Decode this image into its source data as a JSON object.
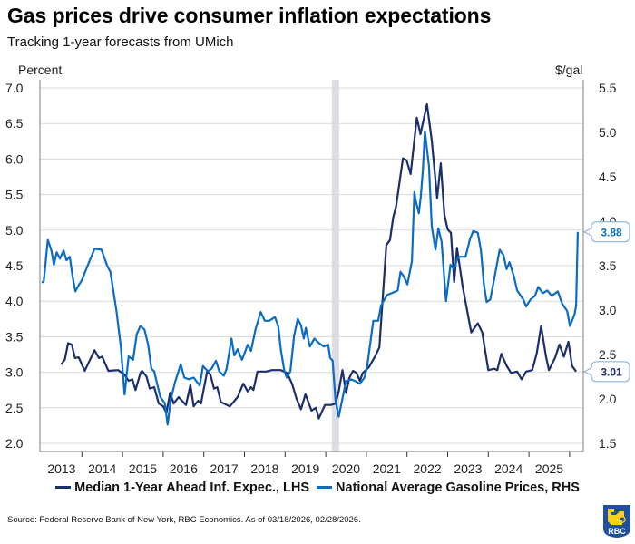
{
  "header": {
    "title": "Gas prices drive consumer inflation expectations",
    "subtitle": "Tracking 1-year forecasts from UMich"
  },
  "footer": {
    "source": "Source: Federal Reserve Bank of New York, RBC Economics. As of 03/18/2026, 02/28/2026.",
    "logo_text": "RBC",
    "logo_icon": "rbc-lion-shield-logo"
  },
  "colors": {
    "inflation_line": "#1a2f6b",
    "gas_line": "#0a6cc4",
    "recession_band": "#dcdde6",
    "grid": "#d9d9d9",
    "axis": "#7f7f7f"
  },
  "chart_data": {
    "type": "line",
    "title": "Gas prices drive consumer inflation expectations",
    "subtitle": "Tracking 1-year forecasts from UMich",
    "xlabel": "",
    "x_ticks": [
      "2013",
      "2014",
      "2015",
      "2016",
      "2017",
      "2018",
      "2019",
      "2020",
      "2021",
      "2022",
      "2023",
      "2024",
      "2025"
    ],
    "xlim": [
      2012.97,
      2026.3
    ],
    "grid": true,
    "legend_position": "bottom",
    "left_axis": {
      "label": "Percent",
      "ylim": [
        2.0,
        7.0
      ],
      "ticks": [
        "7.0",
        "6.5",
        "6.0",
        "5.5",
        "5.0",
        "4.5",
        "4.0",
        "3.5",
        "3.0",
        "2.5",
        "2.0"
      ]
    },
    "right_axis": {
      "label": "$/gal",
      "ylim": [
        1.5,
        5.5
      ],
      "ticks": [
        "5.5",
        "5.0",
        "4.5",
        "4.0",
        "3.5",
        "3.0",
        "2.5",
        "2.0",
        "1.5"
      ]
    },
    "shaded_regions": [
      {
        "label": "recession",
        "start": 2020.15,
        "end": 2020.33
      }
    ],
    "series": [
      {
        "name": "Median 1-Year Ahead Inf. Expec., LHS",
        "axis": "left",
        "color": "#1a2f6b",
        "last_value_label": "3.01",
        "x": [
          2013.49,
          2013.58,
          2013.66,
          2013.75,
          2013.83,
          2013.92,
          2014.07,
          2014.31,
          2014.42,
          2014.5,
          2014.65,
          2014.89,
          2015.04,
          2015.15,
          2015.24,
          2015.32,
          2015.44,
          2015.48,
          2015.59,
          2015.67,
          2015.78,
          2015.89,
          2016.0,
          2016.08,
          2016.17,
          2016.26,
          2016.38,
          2016.56,
          2016.67,
          2016.75,
          2016.86,
          2016.93,
          2017.08,
          2017.16,
          2017.25,
          2017.33,
          2017.42,
          2017.64,
          2017.83,
          2017.97,
          2018.08,
          2018.16,
          2018.22,
          2018.32,
          2018.53,
          2018.68,
          2018.9,
          2019.05,
          2019.17,
          2019.28,
          2019.39,
          2019.5,
          2019.65,
          2019.76,
          2019.83,
          2019.98,
          2020.13,
          2020.24,
          2020.32,
          2020.41,
          2020.5,
          2020.58,
          2020.67,
          2020.76,
          2020.84,
          2020.91,
          2021.06,
          2021.21,
          2021.32,
          2021.49,
          2021.58,
          2021.66,
          2021.73,
          2021.9,
          2021.99,
          2022.09,
          2022.24,
          2022.33,
          2022.49,
          2022.61,
          2022.74,
          2022.83,
          2022.92,
          2023.0,
          2023.08,
          2023.16,
          2023.23,
          2023.37,
          2023.58,
          2023.74,
          2023.85,
          2024.0,
          2024.15,
          2024.22,
          2024.32,
          2024.45,
          2024.56,
          2024.71,
          2024.82,
          2024.93,
          2025.08,
          2025.19,
          2025.3,
          2025.42,
          2025.49,
          2025.64,
          2025.75,
          2025.86,
          2025.97,
          2026.06,
          2026.16
        ],
        "values": [
          3.11,
          3.18,
          3.41,
          3.39,
          3.2,
          3.21,
          3.02,
          3.31,
          3.2,
          3.22,
          3.02,
          3.03,
          2.97,
          2.88,
          2.9,
          2.75,
          2.99,
          3.02,
          2.94,
          2.77,
          2.79,
          2.56,
          2.52,
          2.43,
          2.71,
          2.56,
          2.65,
          2.54,
          2.82,
          2.52,
          2.6,
          2.56,
          3.01,
          2.97,
          2.77,
          2.79,
          2.58,
          2.52,
          2.65,
          2.84,
          2.73,
          2.79,
          2.75,
          3.01,
          3.01,
          3.03,
          3.03,
          2.99,
          2.84,
          2.63,
          2.48,
          2.69,
          2.46,
          2.5,
          2.35,
          2.54,
          2.54,
          2.56,
          2.73,
          3.03,
          2.71,
          2.92,
          3.02,
          2.99,
          2.88,
          2.99,
          3.07,
          3.22,
          3.35,
          4.79,
          4.86,
          5.18,
          5.33,
          6.01,
          5.98,
          5.79,
          6.58,
          6.35,
          6.77,
          6.26,
          5.45,
          5.94,
          5.22,
          5.01,
          4.96,
          4.27,
          4.75,
          4.2,
          3.56,
          3.69,
          3.56,
          3.03,
          3.05,
          3.03,
          3.26,
          3.09,
          2.99,
          3.01,
          2.9,
          3.01,
          3.03,
          3.26,
          3.65,
          3.22,
          3.03,
          3.2,
          3.39,
          3.22,
          3.43,
          3.09,
          3.01
        ]
      },
      {
        "name": "National Average Gasoline Prices, RHS",
        "axis": "right",
        "color": "#0a6cc4",
        "last_value_label": "3.88",
        "x": [
          2013.01,
          2013.06,
          2013.16,
          2013.25,
          2013.31,
          2013.38,
          2013.46,
          2013.55,
          2013.62,
          2013.7,
          2013.77,
          2013.84,
          2013.92,
          2013.99,
          2014.14,
          2014.31,
          2014.48,
          2014.62,
          2014.7,
          2014.85,
          2014.96,
          2015.05,
          2015.15,
          2015.26,
          2015.35,
          2015.44,
          2015.54,
          2015.63,
          2015.71,
          2015.78,
          2015.85,
          2015.93,
          2016.04,
          2016.11,
          2016.19,
          2016.3,
          2016.43,
          2016.52,
          2016.63,
          2016.75,
          2016.9,
          2016.98,
          2017.1,
          2017.19,
          2017.3,
          2017.38,
          2017.49,
          2017.56,
          2017.68,
          2017.75,
          2017.83,
          2017.94,
          2018.08,
          2018.16,
          2018.27,
          2018.4,
          2018.5,
          2018.61,
          2018.75,
          2018.83,
          2018.9,
          2018.98,
          2019.04,
          2019.13,
          2019.22,
          2019.31,
          2019.39,
          2019.46,
          2019.51,
          2019.61,
          2019.72,
          2019.83,
          2019.95,
          2020.06,
          2020.11,
          2020.17,
          2020.24,
          2020.32,
          2020.43,
          2020.5,
          2020.62,
          2020.73,
          2020.84,
          2020.95,
          2021.02,
          2021.17,
          2021.29,
          2021.36,
          2021.51,
          2021.62,
          2021.77,
          2021.84,
          2021.92,
          2022.01,
          2022.12,
          2022.18,
          2022.21,
          2022.29,
          2022.34,
          2022.39,
          2022.44,
          2022.54,
          2022.61,
          2022.7,
          2022.77,
          2022.85,
          2022.96,
          2023.07,
          2023.15,
          2023.26,
          2023.44,
          2023.55,
          2023.63,
          2023.74,
          2023.82,
          2023.89,
          2023.96,
          2024.05,
          2024.15,
          2024.28,
          2024.37,
          2024.45,
          2024.52,
          2024.63,
          2024.71,
          2024.86,
          2024.93,
          2025.04,
          2025.15,
          2025.23,
          2025.34,
          2025.45,
          2025.56,
          2025.71,
          2025.82,
          2025.94,
          2026.01,
          2026.12,
          2026.16,
          2026.2
        ],
        "values": [
          3.31,
          3.32,
          3.79,
          3.67,
          3.51,
          3.65,
          3.58,
          3.67,
          3.56,
          3.6,
          3.38,
          3.21,
          3.28,
          3.33,
          3.5,
          3.69,
          3.68,
          3.5,
          3.43,
          2.99,
          2.58,
          2.05,
          2.48,
          2.44,
          2.73,
          2.82,
          2.78,
          2.61,
          2.34,
          2.31,
          2.17,
          2.02,
          1.95,
          1.71,
          2.0,
          2.2,
          2.39,
          2.24,
          2.22,
          2.24,
          2.15,
          2.37,
          2.31,
          2.34,
          2.43,
          2.31,
          2.26,
          2.34,
          2.68,
          2.49,
          2.56,
          2.44,
          2.61,
          2.54,
          2.78,
          2.98,
          2.88,
          2.88,
          2.92,
          2.82,
          2.54,
          2.32,
          2.24,
          2.31,
          2.71,
          2.9,
          2.83,
          2.68,
          2.8,
          2.59,
          2.68,
          2.63,
          2.59,
          2.61,
          2.46,
          2.43,
          1.98,
          1.8,
          2.05,
          2.2,
          2.22,
          2.2,
          2.17,
          2.24,
          2.37,
          2.88,
          2.88,
          3.05,
          3.17,
          3.19,
          3.22,
          3.43,
          3.38,
          3.29,
          3.55,
          4.33,
          4.24,
          4.09,
          4.28,
          4.58,
          5.01,
          4.62,
          3.94,
          3.68,
          3.92,
          3.77,
          3.1,
          3.51,
          3.46,
          3.6,
          3.6,
          3.8,
          3.89,
          3.87,
          3.67,
          3.29,
          3.09,
          3.12,
          3.36,
          3.68,
          3.62,
          3.46,
          3.54,
          3.38,
          3.22,
          3.12,
          3.04,
          3.12,
          3.16,
          3.26,
          3.19,
          3.22,
          3.16,
          3.21,
          3.07,
          2.99,
          2.82,
          2.95,
          3.05,
          3.88
        ]
      }
    ]
  }
}
